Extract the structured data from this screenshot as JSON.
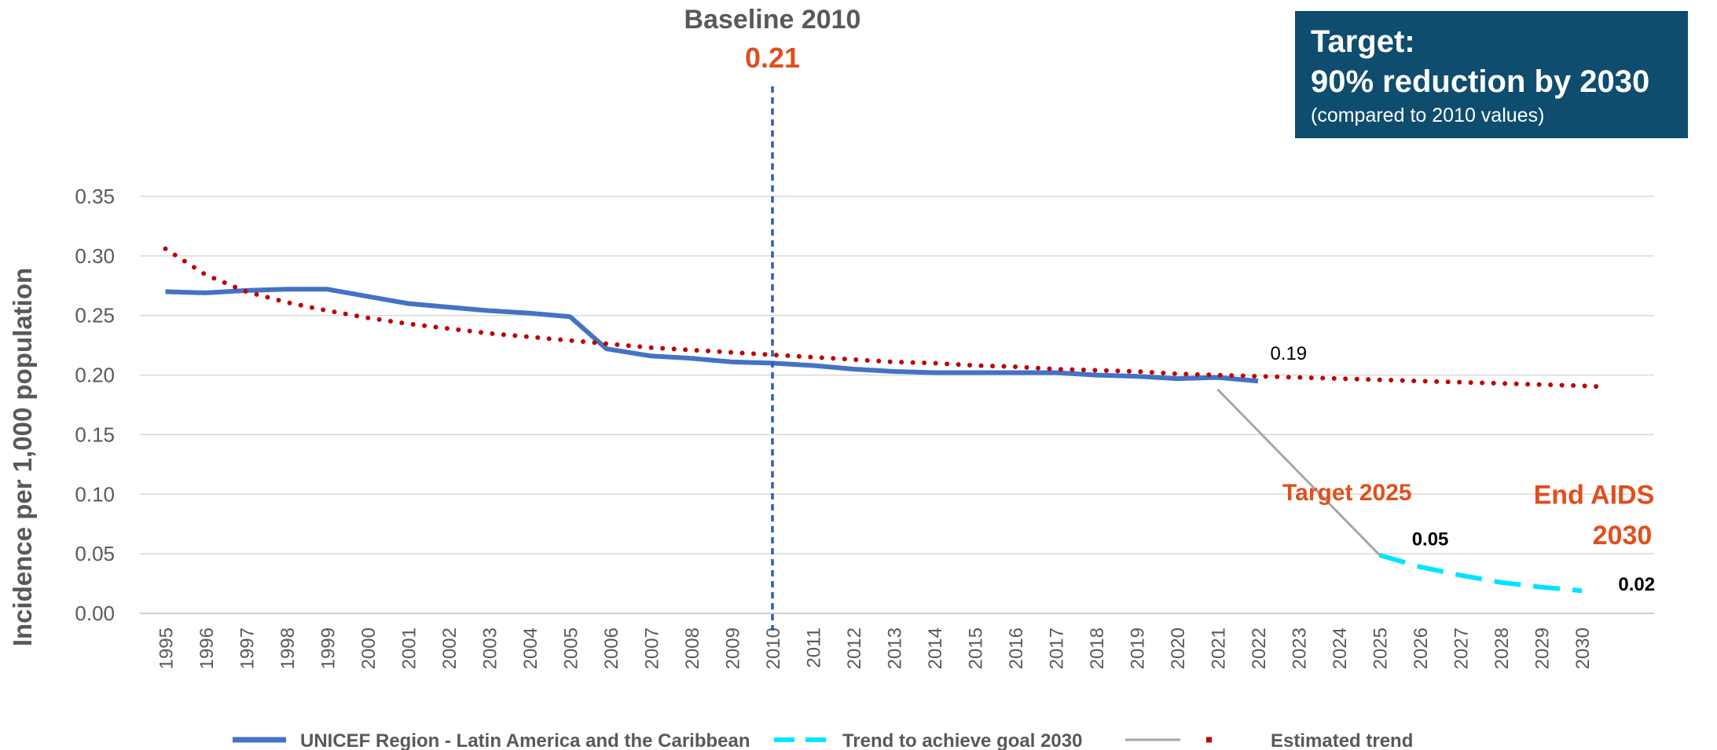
{
  "chart_data": {
    "type": "line",
    "x": [
      "1995",
      "1996",
      "1997",
      "1998",
      "1999",
      "2000",
      "2001",
      "2002",
      "2003",
      "2004",
      "2005",
      "2006",
      "2007",
      "2008",
      "2009",
      "2010",
      "2011",
      "2012",
      "2013",
      "2014",
      "2015",
      "2016",
      "2017",
      "2018",
      "2019",
      "2020",
      "2021",
      "2022",
      "2023",
      "2024",
      "2025",
      "2026",
      "2027",
      "2028",
      "2029",
      "2030"
    ],
    "ylabel": "Incidence per 1,000 population",
    "yticks": [
      "0.00",
      "0.05",
      "0.10",
      "0.15",
      "0.20",
      "0.25",
      "0.30",
      "0.35"
    ],
    "ylim": [
      0,
      0.35
    ],
    "grid": true,
    "legend_position": "bottom",
    "series": [
      {
        "name": "UNICEF Region - Latin America and the Caribbean",
        "style": "solid",
        "color": "#4472c4",
        "points": [
          [
            1995,
            0.27
          ],
          [
            1996,
            0.269
          ],
          [
            1997,
            0.271
          ],
          [
            1998,
            0.272
          ],
          [
            1999,
            0.272
          ],
          [
            2000,
            0.266
          ],
          [
            2001,
            0.26
          ],
          [
            2002,
            0.257
          ],
          [
            2003,
            0.254
          ],
          [
            2004,
            0.252
          ],
          [
            2005,
            0.249
          ],
          [
            2005.9,
            0.222
          ],
          [
            2007,
            0.216
          ],
          [
            2008,
            0.214
          ],
          [
            2009,
            0.211
          ],
          [
            2010,
            0.21
          ],
          [
            2011,
            0.208
          ],
          [
            2012,
            0.205
          ],
          [
            2013,
            0.203
          ],
          [
            2014,
            0.202
          ],
          [
            2015,
            0.202
          ],
          [
            2016,
            0.202
          ],
          [
            2017,
            0.202
          ],
          [
            2018,
            0.2
          ],
          [
            2019,
            0.199
          ],
          [
            2020,
            0.197
          ],
          [
            2021,
            0.198
          ],
          [
            2022,
            0.195
          ]
        ]
      },
      {
        "name": "Trend to achieve goal 2030",
        "style": "dashed",
        "color": "#00e5ff",
        "points": [
          [
            2025,
            0.049
          ],
          [
            2026,
            0.039
          ],
          [
            2027,
            0.032
          ],
          [
            2028,
            0.026
          ],
          [
            2029,
            0.022
          ],
          [
            2030,
            0.019
          ]
        ]
      },
      {
        "name": "",
        "style": "solid",
        "color": "#a6a6a6",
        "points": [
          [
            2021,
            0.188
          ],
          [
            2025,
            0.049
          ]
        ]
      },
      {
        "name": "Estimated trend",
        "style": "dotted",
        "color": "#c00000",
        "points": [
          [
            1995,
            0.306
          ],
          [
            1996,
            0.284
          ],
          [
            1997,
            0.27
          ],
          [
            1998,
            0.261
          ],
          [
            1999,
            0.254
          ],
          [
            2000,
            0.248
          ],
          [
            2001,
            0.243
          ],
          [
            2002,
            0.239
          ],
          [
            2003,
            0.235
          ],
          [
            2004,
            0.232
          ],
          [
            2005,
            0.229
          ],
          [
            2006,
            0.226
          ],
          [
            2007,
            0.223
          ],
          [
            2008,
            0.221
          ],
          [
            2009,
            0.219
          ],
          [
            2010,
            0.217
          ],
          [
            2011,
            0.215
          ],
          [
            2012,
            0.213
          ],
          [
            2013,
            0.211
          ],
          [
            2014,
            0.21
          ],
          [
            2015,
            0.208
          ],
          [
            2016,
            0.207
          ],
          [
            2017,
            0.205
          ],
          [
            2018,
            0.204
          ],
          [
            2019,
            0.203
          ],
          [
            2020,
            0.201
          ],
          [
            2021,
            0.2
          ],
          [
            2022,
            0.199
          ],
          [
            2023,
            0.198
          ],
          [
            2024,
            0.197
          ],
          [
            2025,
            0.196
          ],
          [
            2026,
            0.195
          ],
          [
            2027,
            0.194
          ],
          [
            2028,
            0.193
          ],
          [
            2029,
            0.192
          ],
          [
            2030,
            0.191
          ],
          [
            2030.6,
            0.19
          ]
        ]
      }
    ],
    "baseline": {
      "x": 2010,
      "label": "Baseline 2010",
      "value": "0.21"
    },
    "annotations": [
      {
        "text": "0.19",
        "x": 2022.3,
        "y": 0.213,
        "color": "#000000",
        "weight": "normal",
        "size": 24
      },
      {
        "text": "0.05",
        "x": 2025.8,
        "y": 0.057,
        "color": "#000000",
        "weight": "bold",
        "size": 24
      },
      {
        "text": "0.02",
        "x": 2030.9,
        "y": 0.019,
        "color": "#000000",
        "weight": "bold",
        "size": 24
      },
      {
        "text": "Target 2025",
        "x": 2024.2,
        "y": 0.095,
        "color": "#e04f1e",
        "weight": "bold",
        "size": 30
      },
      {
        "text": "End AIDS",
        "x": 2030.3,
        "y": 0.092,
        "color": "#e04f1e",
        "weight": "bold",
        "size": 34
      },
      {
        "text": "2030",
        "x": 2031.0,
        "y": 0.058,
        "color": "#e04f1e",
        "weight": "bold",
        "size": 34
      }
    ]
  },
  "target_box": {
    "line1": "Target:",
    "line2": "90% reduction by 2030",
    "line3": "(compared to 2010 values)"
  },
  "colors": {
    "accent": "#e04f1e",
    "axis_text": "#595959",
    "grid": "#d9d9d9",
    "box": "#0e4d6e"
  }
}
